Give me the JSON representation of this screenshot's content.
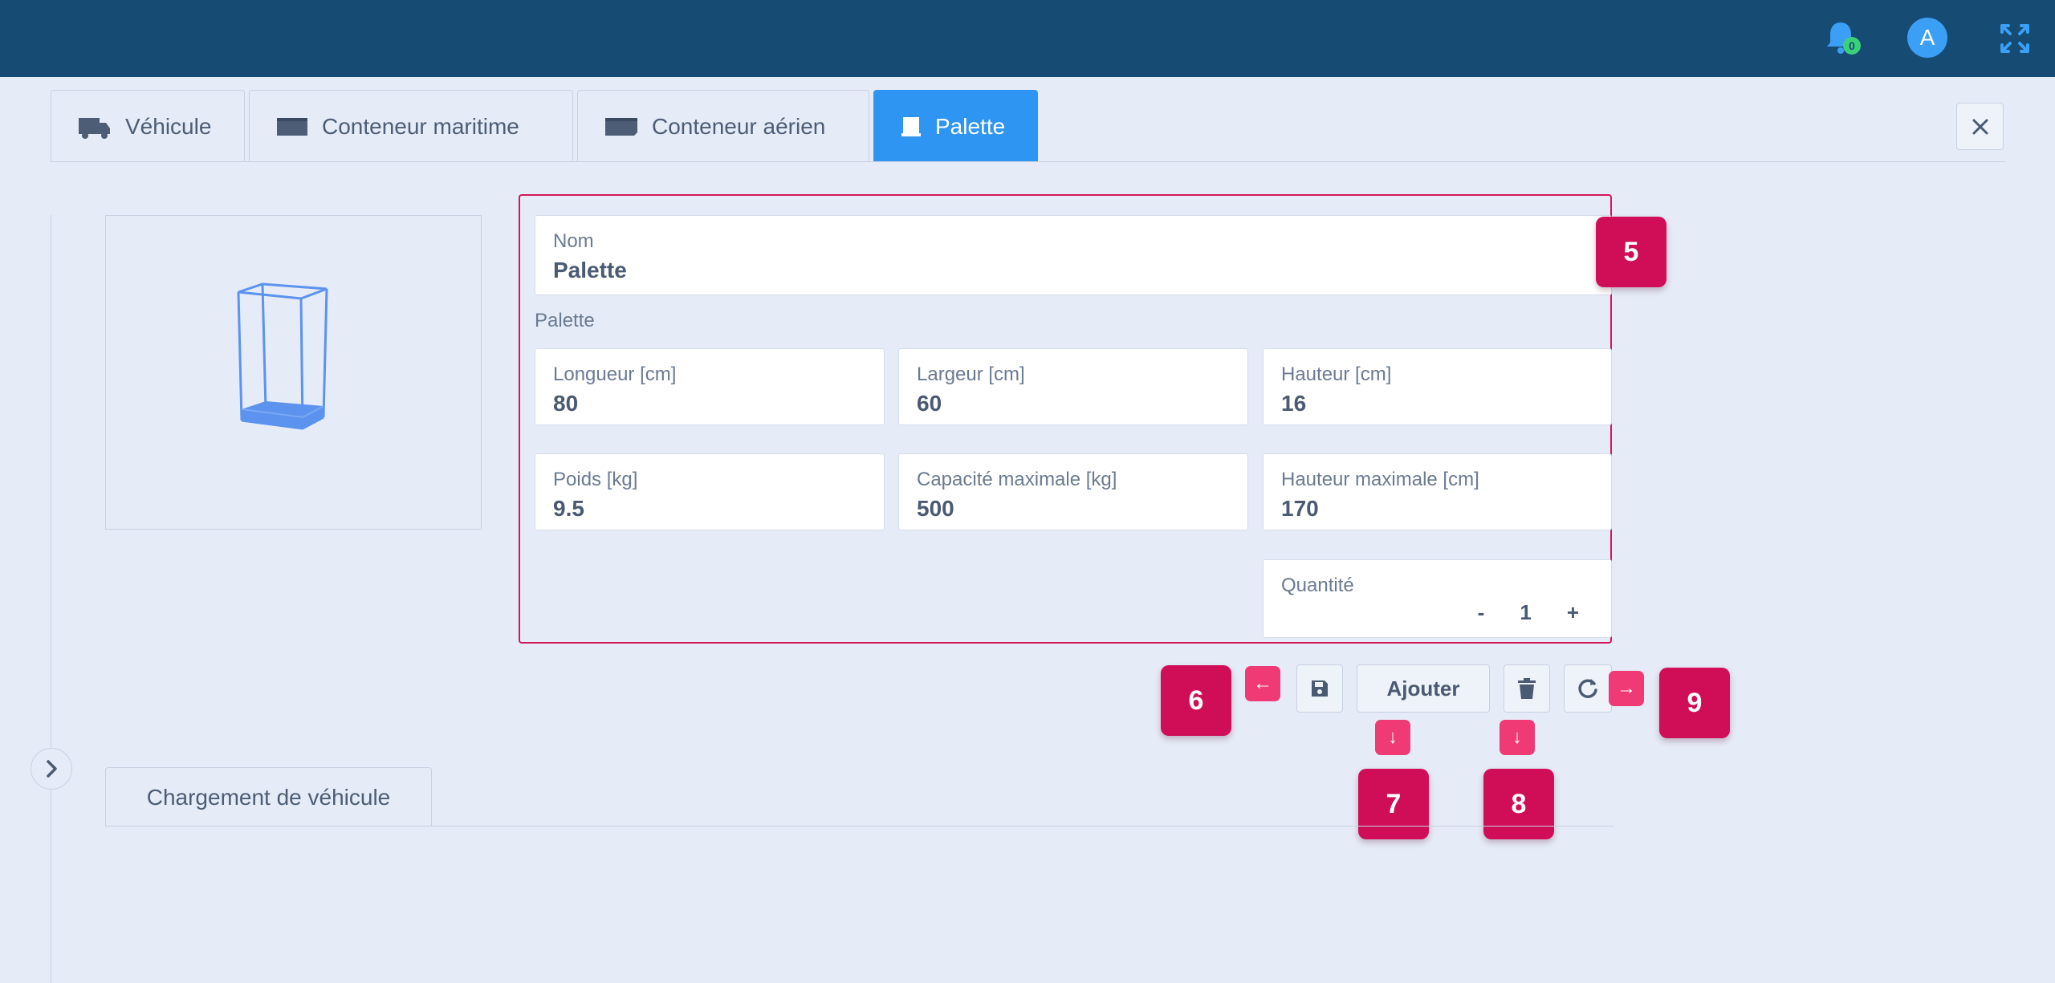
{
  "header": {
    "notification_count": "0",
    "avatar_initial": "A"
  },
  "tabs": [
    {
      "label": "Véhicule",
      "icon": "truck-icon",
      "active": false
    },
    {
      "label": "Conteneur maritime",
      "icon": "container-icon",
      "active": false
    },
    {
      "label": "Conteneur aérien",
      "icon": "air-container-icon",
      "active": false
    },
    {
      "label": "Palette",
      "icon": "pallet-icon",
      "active": true
    }
  ],
  "form": {
    "name": {
      "label": "Nom",
      "value": "Palette"
    },
    "section_label": "Palette",
    "length": {
      "label": "Longueur [cm]",
      "value": "80"
    },
    "width": {
      "label": "Largeur [cm]",
      "value": "60"
    },
    "height": {
      "label": "Hauteur [cm]",
      "value": "16"
    },
    "weight": {
      "label": "Poids [kg]",
      "value": "9.5"
    },
    "max_capacity": {
      "label": "Capacité maximale [kg]",
      "value": "500"
    },
    "max_height": {
      "label": "Hauteur maximale [cm]",
      "value": "170"
    },
    "quantity": {
      "label": "Quantité",
      "value": "1",
      "minus": "-",
      "plus": "+"
    }
  },
  "actions": {
    "add_label": "Ajouter"
  },
  "markers": {
    "m5": "5",
    "m6": "6",
    "m7": "7",
    "m8": "8",
    "m9": "9"
  },
  "arrows": {
    "left": "←",
    "right": "→",
    "down": "↓"
  },
  "subtabs": [
    {
      "label": "Chargement de véhicule"
    }
  ],
  "colors": {
    "topbar": "#164b73",
    "active_tab": "#2f95f3",
    "highlight": "#d4165a",
    "marker": "#cf0e57"
  }
}
